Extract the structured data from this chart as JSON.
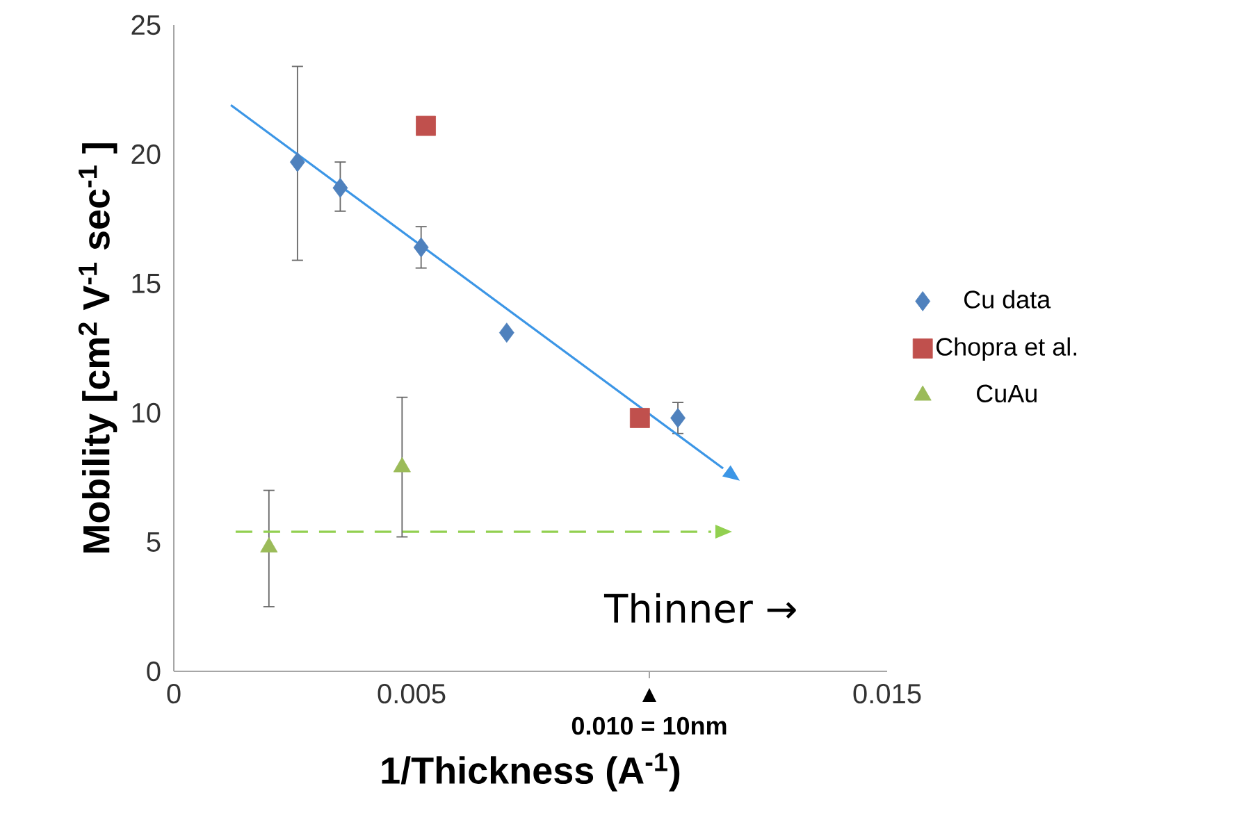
{
  "chart_data": {
    "type": "scatter",
    "xlabel": "1/Thickness (A$^{-1}$)",
    "ylabel": "Mobility [cm$^{2}$ V$^{-1}$ sec$^{-1}$ ]",
    "xlim": [
      0,
      0.015
    ],
    "ylim": [
      0,
      25
    ],
    "xticks": [
      0,
      0.005,
      {
        "value": 0.01,
        "label": null
      },
      0.015
    ],
    "yticks": [
      0,
      5,
      10,
      15,
      20,
      25
    ],
    "grid": false,
    "legend": "right",
    "series": [
      {
        "name": "Cu data",
        "color": "#4f81bd",
        "marker": "diamond",
        "x": [
          0.0026,
          0.0035,
          0.0052,
          0.007,
          0.0106
        ],
        "values": [
          19.7,
          18.7,
          16.4,
          13.1,
          9.8
        ],
        "errors": [
          [
            15.9,
            23.4
          ],
          [
            17.8,
            19.7
          ],
          [
            15.6,
            17.2
          ],
          null,
          [
            9.2,
            10.4
          ]
        ]
      },
      {
        "name": "Chopra et al.",
        "color": "#c0504d",
        "marker": "square",
        "x": [
          0.0053,
          0.0098
        ],
        "values": [
          21.1,
          9.8
        ]
      },
      {
        "name": "CuAu",
        "color": "#9bbb59",
        "marker": "triangle",
        "x": [
          0.002,
          0.0048
        ],
        "values": [
          4.8,
          7.9
        ],
        "errors": [
          [
            2.5,
            7.0
          ],
          [
            5.2,
            10.6
          ]
        ]
      },
      {
        "type": "line",
        "color": "#3c96e6",
        "line_style": "solid",
        "marker": "none",
        "x": [
          0.0012,
          0.01155
        ],
        "values": [
          21.9,
          7.85
        ]
      },
      {
        "type": "line",
        "color": "#92d050",
        "line_style": "dashed",
        "marker": "none",
        "x": [
          0.0013,
          0.0113
        ],
        "values": [
          5.4,
          5.4
        ]
      }
    ],
    "annotations": [
      "Thinner →",
      "0.010 = 10nm"
    ]
  }
}
